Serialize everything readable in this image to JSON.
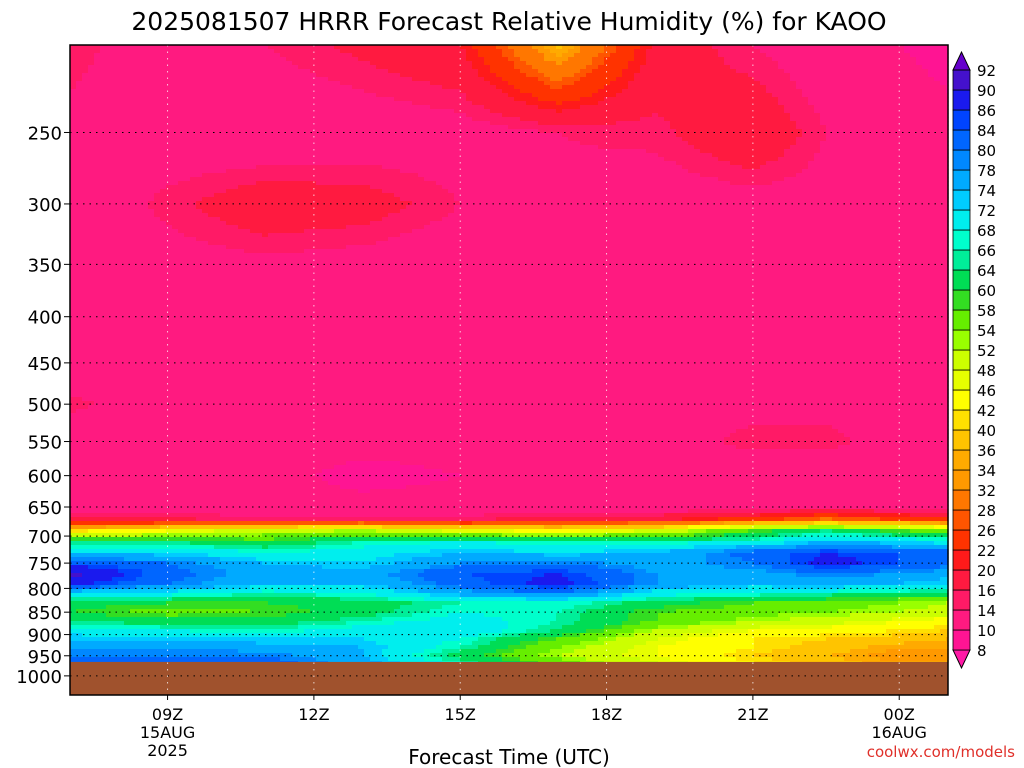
{
  "chart_data": {
    "type": "heatmap",
    "title": "2025081507 HRRR Forecast Relative Humidity (%) for KAOO",
    "xlabel": "Forecast Time (UTC)",
    "ylabel": "",
    "credit": "coolwx.com/models",
    "y_scale": "log",
    "y_reversed": true,
    "x_range_hours": [
      7,
      25
    ],
    "y_range_hpa": [
      200,
      1050
    ],
    "ground_top_hpa": 965,
    "grid": true,
    "y_ticks": [
      "250",
      "300",
      "350",
      "400",
      "450",
      "500",
      "550",
      "600",
      "650",
      "700",
      "750",
      "800",
      "850",
      "900",
      "950",
      "1000"
    ],
    "x_ticks": [
      {
        "hour": 9,
        "lines": [
          "09Z",
          "15AUG",
          "2025"
        ]
      },
      {
        "hour": 12,
        "lines": [
          "12Z"
        ]
      },
      {
        "hour": 15,
        "lines": [
          "15Z"
        ]
      },
      {
        "hour": 18,
        "lines": [
          "18Z"
        ]
      },
      {
        "hour": 21,
        "lines": [
          "21Z"
        ]
      },
      {
        "hour": 24,
        "lines": [
          "00Z",
          "16AUG"
        ]
      }
    ],
    "colorbar": {
      "levels": [
        8,
        10,
        14,
        16,
        20,
        22,
        26,
        28,
        32,
        34,
        36,
        40,
        42,
        46,
        48,
        52,
        54,
        58,
        60,
        64,
        66,
        68,
        72,
        74,
        78,
        80,
        84,
        86,
        90,
        92
      ],
      "colors": [
        "#ff1aa6",
        "#ff1493",
        "#ff1a80",
        "#ff1a66",
        "#ff1a40",
        "#ff1a1a",
        "#ff3300",
        "#ff5500",
        "#ff7700",
        "#ff9900",
        "#ffaa00",
        "#ffc400",
        "#ffe000",
        "#ffff00",
        "#e6ff00",
        "#ccff00",
        "#99ff00",
        "#66ee00",
        "#33dd22",
        "#00dd55",
        "#00ee99",
        "#00ffcc",
        "#00eeee",
        "#00ccff",
        "#00aaff",
        "#0088ff",
        "#0066ff",
        "#0044ff",
        "#1a1aee",
        "#4411cc",
        "#6600cc"
      ]
    },
    "humidity_profile": {
      "pressure_hpa": [
        200,
        250,
        300,
        350,
        400,
        450,
        500,
        550,
        600,
        650,
        670,
        690,
        710,
        730,
        750,
        770,
        790,
        810,
        830,
        850,
        870,
        890,
        910,
        930,
        950,
        965
      ],
      "hours": [
        7,
        9,
        11,
        13,
        15,
        17,
        19,
        21,
        22.5,
        24,
        25
      ],
      "rows": [
        [
          15,
          12,
          14,
          17,
          20,
          37,
          19,
          14,
          11,
          10,
          9
        ],
        [
          13,
          11,
          10,
          11,
          12,
          14,
          15,
          20,
          14,
          12,
          11
        ],
        [
          10,
          15,
          19,
          18,
          14,
          13,
          11,
          12,
          12,
          11,
          10
        ],
        [
          11,
          12,
          13,
          12,
          11,
          11,
          11,
          11,
          10,
          11,
          12
        ],
        [
          11,
          11,
          11,
          10,
          11,
          11,
          11,
          11,
          12,
          11,
          10
        ],
        [
          11,
          11,
          11,
          11,
          10,
          11,
          11,
          11,
          11,
          11,
          11
        ],
        [
          15,
          11,
          11,
          11,
          11,
          11,
          11,
          13,
          13,
          11,
          11
        ],
        [
          11,
          11,
          11,
          11,
          11,
          11,
          12,
          15,
          15,
          12,
          11
        ],
        [
          11,
          11,
          11,
          9,
          10,
          11,
          11,
          11,
          11,
          11,
          11
        ],
        [
          11,
          11,
          11,
          11,
          11,
          11,
          11,
          11,
          11,
          11,
          12
        ],
        [
          16,
          16,
          15,
          15,
          15,
          17,
          18,
          24,
          28,
          25,
          22
        ],
        [
          40,
          45,
          50,
          52,
          46,
          44,
          48,
          58,
          64,
          58,
          55
        ],
        [
          64,
          64,
          60,
          66,
          68,
          66,
          66,
          68,
          74,
          72,
          70
        ],
        [
          72,
          72,
          68,
          70,
          74,
          72,
          74,
          82,
          86,
          84,
          82
        ],
        [
          84,
          80,
          74,
          72,
          78,
          80,
          76,
          80,
          88,
          84,
          82
        ],
        [
          92,
          82,
          76,
          76,
          84,
          86,
          78,
          76,
          80,
          78,
          76
        ],
        [
          88,
          80,
          74,
          74,
          82,
          88,
          78,
          74,
          76,
          74,
          72
        ],
        [
          70,
          70,
          66,
          68,
          76,
          80,
          70,
          68,
          66,
          64,
          62
        ],
        [
          62,
          60,
          60,
          62,
          66,
          68,
          62,
          58,
          56,
          54,
          52
        ],
        [
          60,
          56,
          58,
          62,
          68,
          66,
          58,
          56,
          54,
          52,
          50
        ],
        [
          64,
          62,
          62,
          66,
          70,
          66,
          58,
          52,
          50,
          46,
          44
        ],
        [
          70,
          68,
          66,
          70,
          72,
          64,
          52,
          46,
          44,
          42,
          40
        ],
        [
          74,
          72,
          72,
          72,
          68,
          58,
          48,
          42,
          40,
          38,
          36
        ],
        [
          78,
          78,
          76,
          74,
          66,
          54,
          46,
          42,
          38,
          34,
          34
        ],
        [
          80,
          80,
          80,
          74,
          62,
          52,
          46,
          40,
          36,
          32,
          32
        ],
        [
          80,
          82,
          82,
          76,
          66,
          56,
          48,
          42,
          38,
          34,
          34
        ]
      ]
    }
  }
}
